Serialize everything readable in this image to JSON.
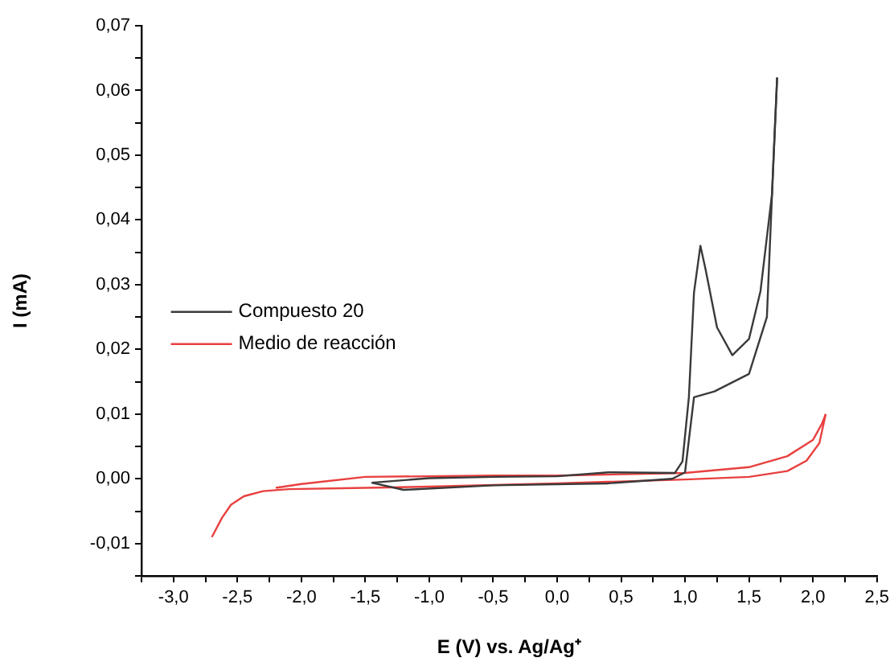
{
  "chart_data": {
    "type": "line",
    "xlabel": "E (V) vs. Ag/Ag⁺",
    "ylabel": "I (mA)",
    "xlim": [
      -3.25,
      2.5
    ],
    "ylim": [
      -0.015,
      0.07
    ],
    "xticks": [
      {
        "value": -3.25,
        "label": null
      },
      {
        "value": -3,
        "label": "-3,0"
      },
      {
        "value": -2.75,
        "label": null
      },
      {
        "value": -2.5,
        "label": "-2,5"
      },
      {
        "value": -2.25,
        "label": null
      },
      {
        "value": -2,
        "label": "-2,0"
      },
      {
        "value": -1.75,
        "label": null
      },
      {
        "value": -1.5,
        "label": "-1,5"
      },
      {
        "value": -1.25,
        "label": null
      },
      {
        "value": -1,
        "label": "-1,0"
      },
      {
        "value": -0.75,
        "label": null
      },
      {
        "value": -0.5,
        "label": "-0,5"
      },
      {
        "value": -0.25,
        "label": null
      },
      {
        "value": 0,
        "label": "0,0"
      },
      {
        "value": 0.25,
        "label": null
      },
      {
        "value": 0.5,
        "label": "0,5"
      },
      {
        "value": 0.75,
        "label": null
      },
      {
        "value": 1,
        "label": "1,0"
      },
      {
        "value": 1.25,
        "label": null
      },
      {
        "value": 1.5,
        "label": "1,5"
      },
      {
        "value": 1.75,
        "label": null
      },
      {
        "value": 2,
        "label": "2,0"
      },
      {
        "value": 2.25,
        "label": null
      },
      {
        "value": 2.5,
        "label": "2,5"
      }
    ],
    "yticks": [
      {
        "value": -0.015,
        "label": null
      },
      {
        "value": -0.01,
        "label": "-0,01"
      },
      {
        "value": -0.005,
        "label": null
      },
      {
        "value": 0,
        "label": "0,00"
      },
      {
        "value": 0.005,
        "label": null
      },
      {
        "value": 0.01,
        "label": "0,01"
      },
      {
        "value": 0.015,
        "label": null
      },
      {
        "value": 0.02,
        "label": "0,02"
      },
      {
        "value": 0.025,
        "label": null
      },
      {
        "value": 0.03,
        "label": "0,03"
      },
      {
        "value": 0.035,
        "label": null
      },
      {
        "value": 0.04,
        "label": "0,04"
      },
      {
        "value": 0.045,
        "label": null
      },
      {
        "value": 0.05,
        "label": "0,05"
      },
      {
        "value": 0.055,
        "label": null
      },
      {
        "value": 0.06,
        "label": "0,06"
      },
      {
        "value": 0.065,
        "label": null
      },
      {
        "value": 0.07,
        "label": "0,07"
      }
    ],
    "grid": false,
    "legend": "left",
    "marker": "none",
    "series": [
      {
        "name": "Compuesto 20",
        "color": "#3a3a3a",
        "x": [
          -1.45,
          -1.2,
          -0.5,
          0.4,
          0.9,
          1.0,
          1.03,
          1.07,
          1.23,
          1.5,
          1.64,
          1.69,
          1.72
        ],
        "values": [
          -0.0006,
          -0.0017,
          -0.001,
          -0.0007,
          0,
          0.001,
          0.006,
          0.0126,
          0.0135,
          0.0162,
          0.025,
          0.0486,
          0.062
        ]
      },
      {
        "color": "#3a3a3a",
        "x": [
          1.72,
          1.68,
          1.59,
          1.5,
          1.37,
          1.25,
          1.16,
          1.12,
          1.07,
          1.03,
          0.98,
          0.92,
          0.4,
          0,
          -0.5,
          -1.0,
          -1.45
        ],
        "values": [
          0.062,
          0.044,
          0.029,
          0.0216,
          0.0191,
          0.0234,
          0.0324,
          0.036,
          0.0288,
          0.0126,
          0.0027,
          0.0009,
          0.001,
          0.0004,
          0.0003,
          0.0001,
          -0.0006
        ]
      },
      {
        "name": "Medio de reacción",
        "color": "#e8403f",
        "x": [
          -2.7,
          -2.62,
          -2.55,
          -2.45,
          -2.3,
          -2.1,
          -1.5,
          -1.0,
          0,
          1.0,
          1.5,
          1.8,
          1.95,
          2.05,
          2.1
        ],
        "values": [
          -0.009,
          -0.006,
          -0.004,
          -0.0027,
          -0.0019,
          -0.0016,
          -0.0014,
          -0.0012,
          -0.0007,
          -0.0001,
          0.0003,
          0.0012,
          0.0028,
          0.0055,
          0.01
        ]
      },
      {
        "color": "#e8403f",
        "x": [
          2.1,
          2.07,
          2.0,
          1.8,
          1.5,
          1.0,
          0,
          -0.5,
          -1.5,
          -2.0,
          -2.2
        ],
        "values": [
          0.01,
          0.0085,
          0.006,
          0.0035,
          0.0018,
          0.0009,
          0.0005,
          0.0005,
          0.0003,
          -0.0008,
          -0.0014
        ]
      }
    ]
  }
}
